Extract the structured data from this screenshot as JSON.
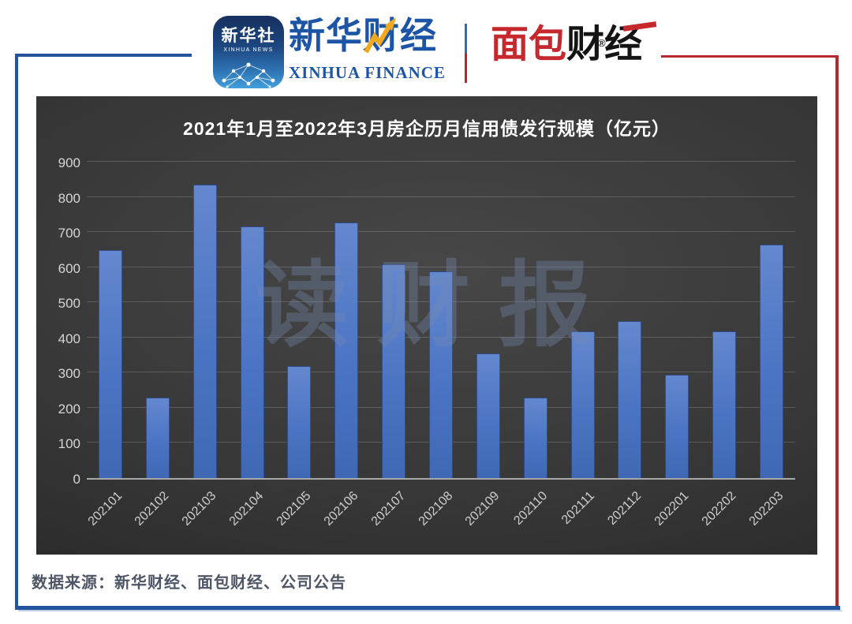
{
  "header": {
    "xinhua_app": {
      "cn": "新华社",
      "en": "XINHUA NEWS"
    },
    "xinhua_finance": {
      "cn": "新华财经",
      "en": "XINHUA FINANCE"
    },
    "bread_finance": {
      "cn_red": "面包",
      "cn_black": "财经",
      "reg": "®"
    }
  },
  "chart_data": {
    "type": "bar",
    "title": "2021年1月至2022年3月房企历月信用债发行规模（亿元）",
    "categories": [
      "202101",
      "202102",
      "202103",
      "202104",
      "202105",
      "202106",
      "202107",
      "202108",
      "202109",
      "202110",
      "202111",
      "202112",
      "202201",
      "202202",
      "202203"
    ],
    "values": [
      648,
      230,
      836,
      716,
      318,
      728,
      608,
      588,
      355,
      230,
      418,
      447,
      294,
      417,
      665
    ],
    "xlabel": "",
    "ylabel": "",
    "ylim": [
      0,
      900
    ],
    "ytick_step": 100,
    "grid": true,
    "legend": "none",
    "watermark": "读财报",
    "bar_color_top": "#6488CE",
    "bar_color_bottom": "#3F68B4",
    "background": "dark-gray-gradient"
  },
  "footer": {
    "source": "数据来源：新华财经、面包财经、公司公告"
  },
  "colors": {
    "frame_blue": "#24549C",
    "frame_red": "#B5292E",
    "brand_blue": "#1C55A6",
    "brand_red": "#C5282D",
    "arrow_gold": "#F2A91E",
    "axis_text": "#d6d6d6",
    "source_text": "#4E5565"
  }
}
